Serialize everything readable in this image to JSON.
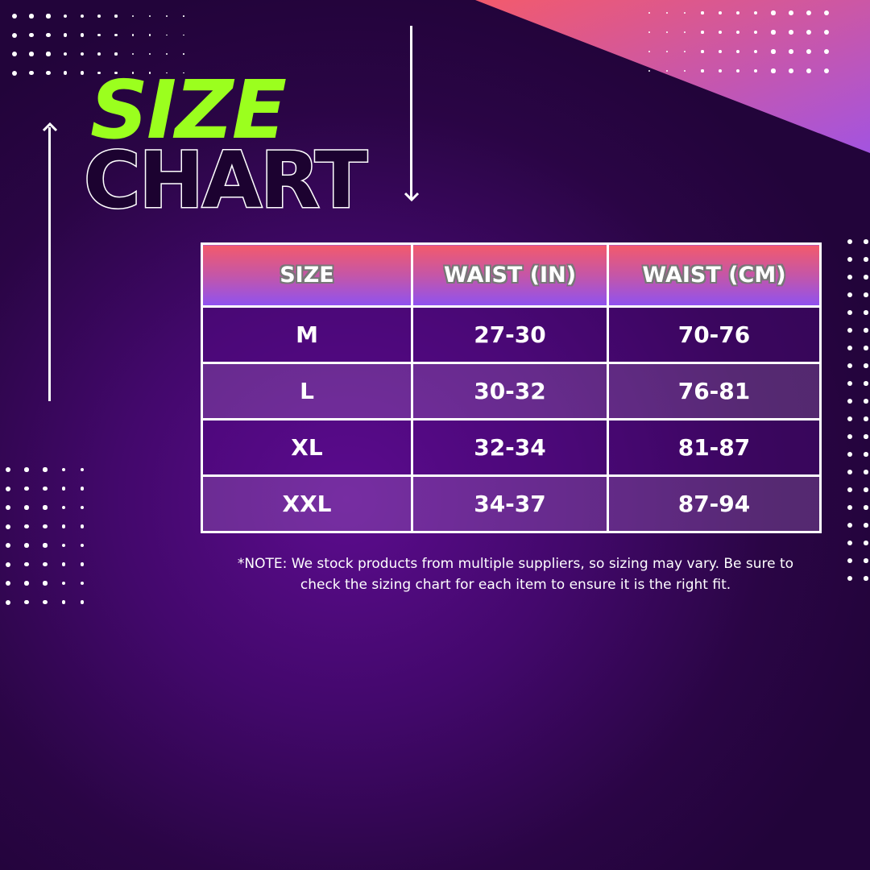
{
  "title": {
    "line1": "SIZE",
    "line2": "CHART"
  },
  "colors": {
    "accent_green": "#9bff1e",
    "header_top": "#f35a6c",
    "header_bottom": "#8f52f0",
    "background": "#43086c"
  },
  "table": {
    "headers": [
      "SIZE",
      "WAIST (IN)",
      "WAIST (CM)"
    ],
    "rows": [
      [
        "M",
        "27-30",
        "70-76"
      ],
      [
        "L",
        "30-32",
        "76-81"
      ],
      [
        "XL",
        "32-34",
        "81-87"
      ],
      [
        "XXL",
        "34-37",
        "87-94"
      ]
    ]
  },
  "note": "*NOTE: We stock products from multiple suppliers, so sizing may vary. Be sure to check the sizing chart for  each item to ensure it is the right fit."
}
